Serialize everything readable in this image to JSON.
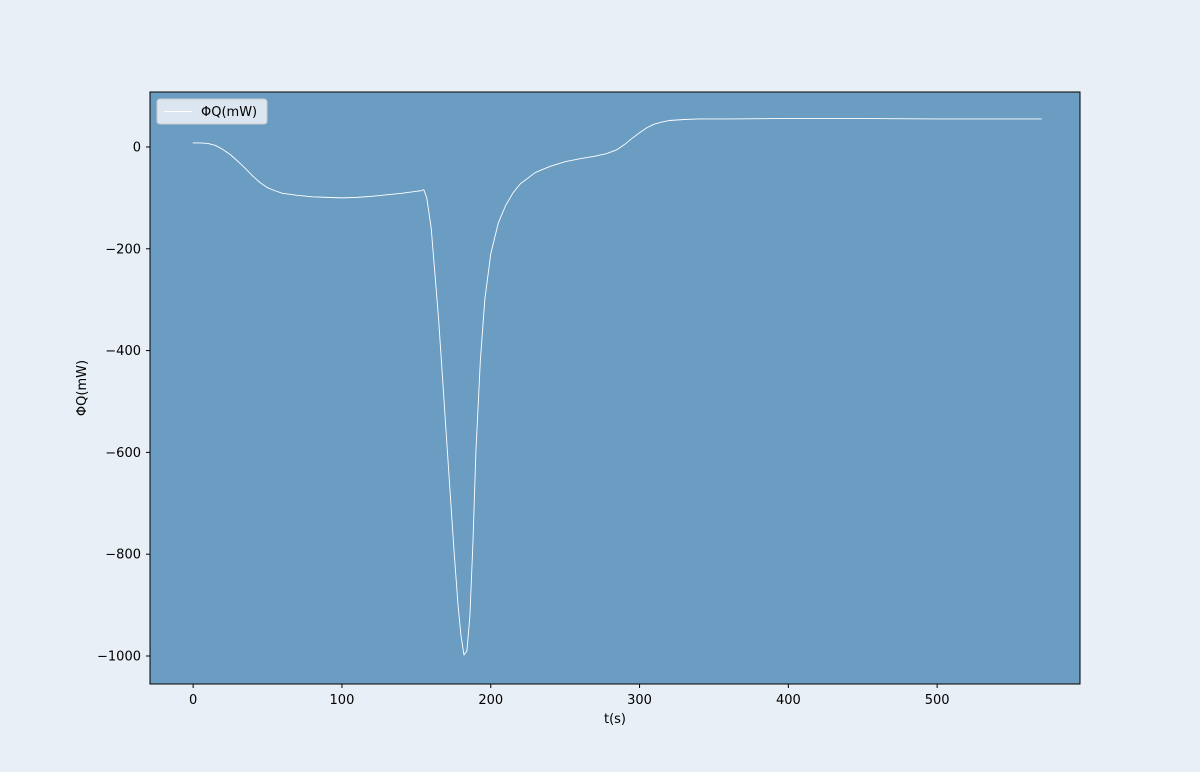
{
  "colors": {
    "figure_background": "#e9eff6",
    "plot_background": "#6b9dc3",
    "line": "#ffffff",
    "axes": "#000000"
  },
  "chart_data": {
    "type": "line",
    "title": "",
    "xlabel": "t(s)",
    "ylabel": "ΦQ(mW)",
    "xlim": [
      -29,
      596
    ],
    "ylim": [
      -1055,
      108
    ],
    "xticks": [
      0,
      100,
      200,
      300,
      400,
      500
    ],
    "xtick_labels": [
      "0",
      "100",
      "200",
      "300",
      "400",
      "500"
    ],
    "yticks": [
      0,
      -200,
      -400,
      -600,
      -800,
      -1000
    ],
    "ytick_labels": [
      "0",
      "−200",
      "−400",
      "−600",
      "−800",
      "−1000"
    ],
    "grid": false,
    "legend": {
      "position": "top-left",
      "entries": [
        "ΦQ(mW)"
      ]
    },
    "series": [
      {
        "name": "ΦQ(mW)",
        "x": [
          0,
          5,
          10,
          15,
          20,
          25,
          30,
          35,
          40,
          45,
          50,
          55,
          60,
          70,
          80,
          90,
          100,
          110,
          120,
          130,
          140,
          150,
          153,
          155,
          157,
          160,
          165,
          170,
          175,
          178,
          180,
          182,
          184,
          186,
          188,
          190,
          193,
          196,
          200,
          205,
          210,
          215,
          220,
          230,
          240,
          250,
          260,
          270,
          278,
          285,
          290,
          295,
          300,
          305,
          310,
          315,
          320,
          330,
          340,
          360,
          400,
          450,
          500,
          550,
          570
        ],
        "y": [
          8,
          8,
          7,
          3,
          -5,
          -15,
          -28,
          -42,
          -57,
          -70,
          -80,
          -86,
          -91,
          -95,
          -98,
          -99,
          -100,
          -99,
          -97,
          -94,
          -91,
          -87,
          -86,
          -84,
          -100,
          -160,
          -340,
          -560,
          -780,
          -900,
          -960,
          -998,
          -990,
          -920,
          -780,
          -600,
          -420,
          -300,
          -210,
          -150,
          -115,
          -90,
          -72,
          -50,
          -38,
          -29,
          -23,
          -18,
          -13,
          -5,
          5,
          17,
          28,
          38,
          45,
          49,
          52,
          54,
          55,
          55,
          56,
          56,
          55,
          55,
          55
        ]
      }
    ]
  }
}
